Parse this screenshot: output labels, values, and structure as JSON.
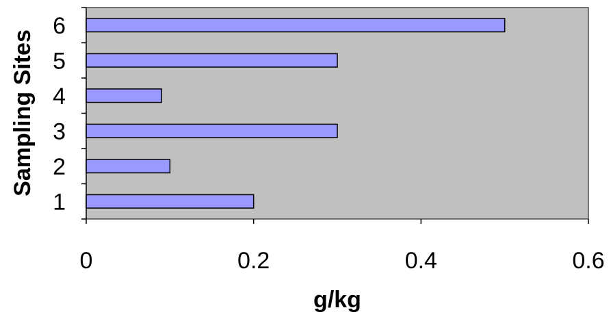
{
  "chart_data": {
    "type": "bar",
    "orientation": "horizontal",
    "title": "",
    "xlabel": "g/kg",
    "ylabel": "Sampling Sites",
    "categories": [
      "1",
      "2",
      "3",
      "4",
      "5",
      "6"
    ],
    "values": [
      0.2,
      0.1,
      0.3,
      0.09,
      0.3,
      0.5
    ],
    "xlim": [
      0,
      0.6
    ],
    "xticks": [
      0,
      0.2,
      0.4,
      0.6
    ],
    "xtick_labels": [
      "0",
      "0.2",
      "0.4",
      "0.6"
    ],
    "grid": false,
    "legend": "none"
  },
  "colors": {
    "plot_background": "#c0c0c0",
    "bar_fill": "#9999ff",
    "bar_stroke": "#000000",
    "axis": "#000000"
  }
}
